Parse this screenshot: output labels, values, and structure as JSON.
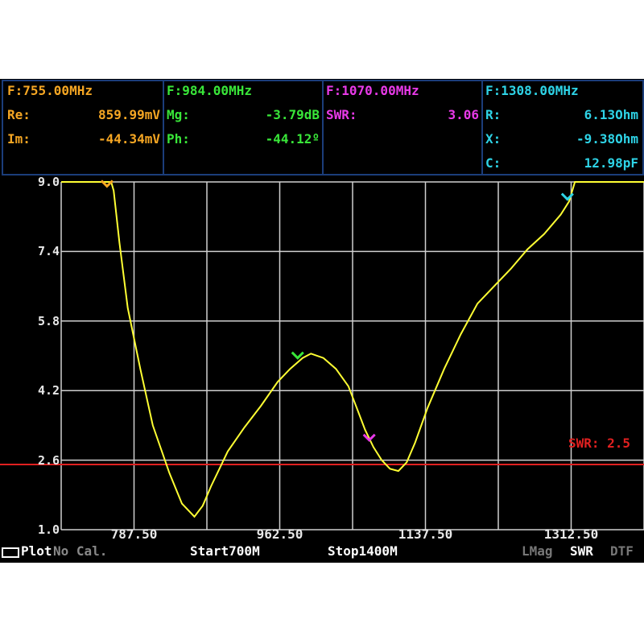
{
  "markers": [
    {
      "freq": "F:755.00MHz",
      "color": "#f5a623",
      "rows": [
        {
          "label": "Re:",
          "value": "859.99mV"
        },
        {
          "label": "Im:",
          "value": "-44.34mV"
        }
      ]
    },
    {
      "freq": "F:984.00MHz",
      "color": "#39e639",
      "rows": [
        {
          "label": "Mg:",
          "value": "-3.79dB"
        },
        {
          "label": "Ph:",
          "value": "-44.12º"
        }
      ]
    },
    {
      "freq": "F:1070.00MHz",
      "color": "#e83ae8",
      "rows": [
        {
          "label": "SWR:",
          "value": "3.06"
        }
      ]
    },
    {
      "freq": "F:1308.00MHz",
      "color": "#2ed3e6",
      "rows": [
        {
          "label": "R:",
          "value": "6.13Ohm"
        },
        {
          "label": "X:",
          "value": "-9.38Ohm"
        },
        {
          "label": "C:",
          "value": "12.98pF"
        }
      ]
    }
  ],
  "chart_data": {
    "type": "line",
    "title": "",
    "xlabel": "",
    "ylabel": "",
    "xlim": [
      700,
      1400
    ],
    "ylim": [
      1.0,
      9.0
    ],
    "y_ticks": [
      9.0,
      7.4,
      5.8,
      4.2,
      2.6,
      1.0
    ],
    "y_tick_labels": [
      "9.0",
      "7.4",
      "5.8",
      "4.2",
      "2.6",
      "1.0"
    ],
    "x_tick_labels": [
      {
        "x": 787.5,
        "label": "787.50"
      },
      {
        "x": 962.5,
        "label": "962.50"
      },
      {
        "x": 1137.5,
        "label": "1137.50"
      },
      {
        "x": 1312.5,
        "label": "1312.50"
      }
    ],
    "grid": true,
    "series": [
      {
        "color": "#ffff33",
        "x": [
          700,
          740,
          760,
          763,
          770,
          780,
          795,
          810,
          830,
          845,
          860,
          870,
          880,
          900,
          920,
          940,
          960,
          975,
          990,
          1000,
          1015,
          1030,
          1045,
          1055,
          1065,
          1075,
          1085,
          1095,
          1105,
          1115,
          1125,
          1140,
          1160,
          1180,
          1200,
          1220,
          1240,
          1260,
          1280,
          1300,
          1310,
          1317,
          1325,
          1400
        ],
        "y": [
          9.0,
          9.0,
          9.0,
          8.8,
          7.6,
          6.1,
          4.7,
          3.4,
          2.3,
          1.6,
          1.3,
          1.55,
          2.0,
          2.8,
          3.35,
          3.85,
          4.4,
          4.7,
          4.95,
          5.05,
          4.95,
          4.7,
          4.3,
          3.8,
          3.3,
          2.9,
          2.6,
          2.4,
          2.35,
          2.55,
          3.0,
          3.8,
          4.7,
          5.5,
          6.2,
          6.6,
          7.0,
          7.45,
          7.8,
          8.25,
          8.55,
          9.0,
          9.0,
          9.0
        ]
      }
    ],
    "reference": {
      "y": 2.5,
      "label": "SWR: 2.5",
      "color": "#e02020"
    },
    "marker_points": [
      {
        "x": 755,
        "y": 8.9,
        "color": "#f5a623"
      },
      {
        "x": 984,
        "y": 4.95,
        "color": "#39e639"
      },
      {
        "x": 1070,
        "y": 3.06,
        "color": "#e83ae8"
      },
      {
        "x": 1308,
        "y": 8.6,
        "color": "#2ed3e6"
      }
    ]
  },
  "status": {
    "left": "Plot",
    "cal": "No Cal.",
    "start": "Start700M",
    "stop": "Stop1400M",
    "lmag": "LMag",
    "swr": "SWR",
    "dtf": "DTF"
  }
}
